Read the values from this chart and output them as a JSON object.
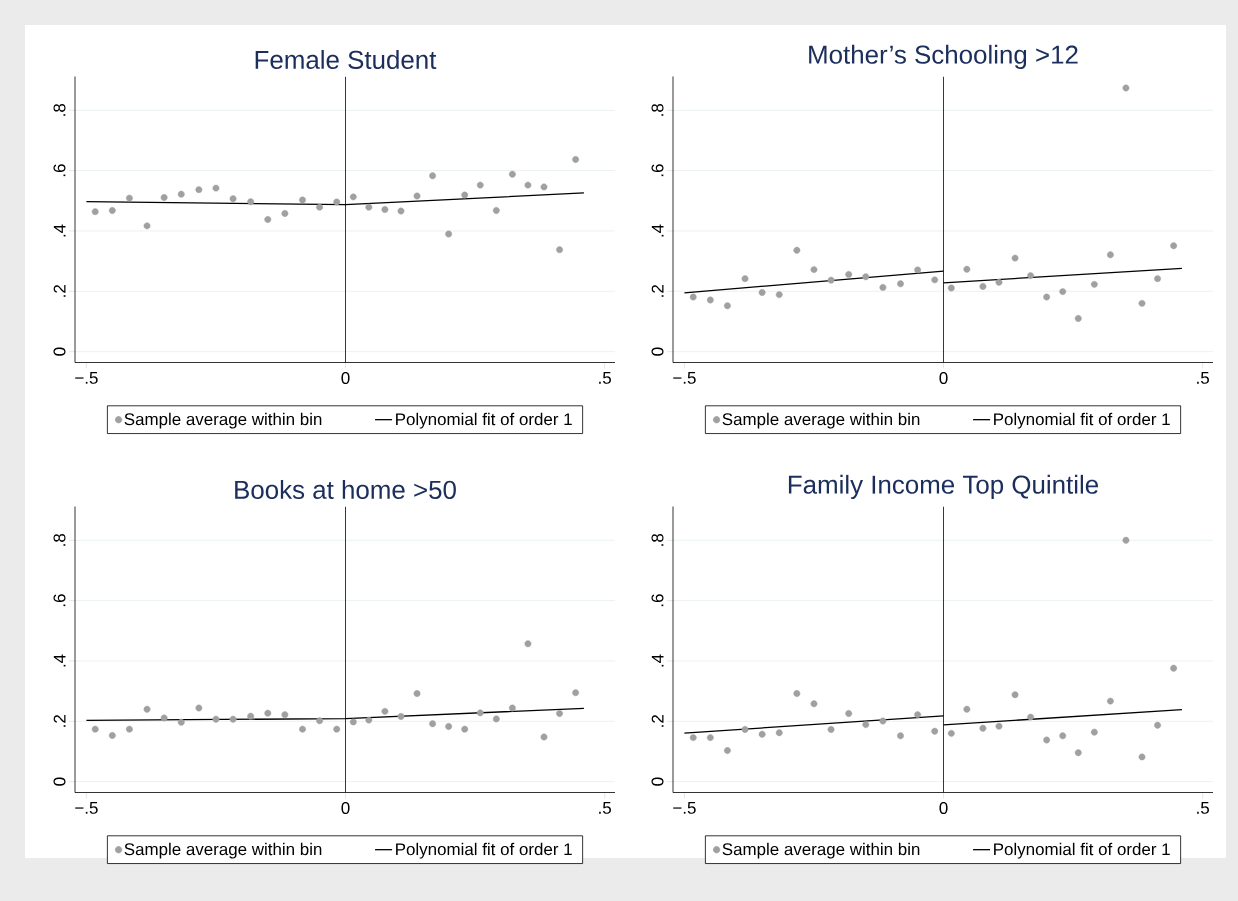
{
  "chart_data": [
    {
      "type": "scatter",
      "title": "Female Student",
      "x": [
        -0.483,
        -0.45,
        -0.417,
        -0.383,
        -0.35,
        -0.317,
        -0.283,
        -0.25,
        -0.217,
        -0.183,
        -0.15,
        -0.117,
        -0.083,
        -0.05,
        -0.017,
        0.015,
        0.045,
        0.076,
        0.107,
        0.138,
        0.168,
        0.199,
        0.23,
        0.26,
        0.291,
        0.322,
        0.352,
        0.383,
        0.413,
        0.444
      ],
      "series": [
        {
          "name": "Sample average within bin",
          "color": "#a0a0a0",
          "marker": "circle",
          "values": [
            0.464,
            0.468,
            0.509,
            0.417,
            0.511,
            0.522,
            0.537,
            0.542,
            0.507,
            0.497,
            0.438,
            0.458,
            0.503,
            0.479,
            0.496,
            0.513,
            0.479,
            0.471,
            0.466,
            0.516,
            0.583,
            0.39,
            0.519,
            0.552,
            0.468,
            0.588,
            0.552,
            0.546,
            0.338,
            0.637
          ]
        },
        {
          "name": "Polynomial fit of order 1",
          "type": "line",
          "color": "#000000",
          "x": [
            -0.5,
            0,
            0.46
          ],
          "values": [
            0.497,
            0.487,
            0.526
          ]
        }
      ],
      "xlim": [
        -0.522,
        0.52
      ],
      "ylim": [
        -0.036,
        0.912
      ],
      "xticks": [
        {
          "value": -0.5,
          "label": "−.5"
        },
        {
          "value": 0,
          "label": "0"
        },
        {
          "value": 0.5,
          "label": ".5"
        }
      ],
      "yticks": [
        {
          "value": 0,
          "label": "0"
        },
        {
          "value": 0.2,
          "label": ".2"
        },
        {
          "value": 0.4,
          "label": ".4"
        },
        {
          "value": 0.6,
          "label": ".6"
        },
        {
          "value": 0.8,
          "label": ".8"
        }
      ],
      "grid": "y",
      "legend": "bottom",
      "ref_lines": [
        {
          "axis": "x",
          "value": 0,
          "color": "#000000"
        }
      ]
    },
    {
      "type": "scatter",
      "title": "Mother’s Schooling >12",
      "x": [
        -0.483,
        -0.45,
        -0.417,
        -0.383,
        -0.35,
        -0.317,
        -0.283,
        -0.25,
        -0.217,
        -0.183,
        -0.15,
        -0.117,
        -0.083,
        -0.05,
        -0.017,
        0.015,
        0.045,
        0.076,
        0.107,
        0.138,
        0.168,
        0.199,
        0.23,
        0.26,
        0.291,
        0.322,
        0.352,
        0.383,
        0.413,
        0.444
      ],
      "series": [
        {
          "name": "Sample average within bin",
          "color": "#a0a0a0",
          "marker": "circle",
          "values": [
            0.181,
            0.171,
            0.152,
            0.242,
            0.196,
            0.189,
            0.336,
            0.272,
            0.237,
            0.256,
            0.248,
            0.213,
            0.225,
            0.271,
            0.238,
            0.211,
            0.273,
            0.216,
            0.23,
            0.31,
            0.252,
            0.181,
            0.199,
            0.11,
            0.223,
            0.321,
            0.874,
            0.16,
            0.242,
            0.351
          ]
        },
        {
          "name": "Polynomial fit of order 1",
          "type": "line",
          "color": "#000000",
          "x": [
            -0.5,
            0
          ],
          "values": [
            0.195,
            0.267
          ]
        },
        {
          "type": "line",
          "color": "#000000",
          "x": [
            0,
            0.46
          ],
          "values": [
            0.228,
            0.276
          ]
        }
      ],
      "xlim": [
        -0.522,
        0.52
      ],
      "ylim": [
        -0.036,
        0.912
      ],
      "xticks": [
        {
          "value": -0.5,
          "label": "−.5"
        },
        {
          "value": 0,
          "label": "0"
        },
        {
          "value": 0.5,
          "label": ".5"
        }
      ],
      "yticks": [
        {
          "value": 0,
          "label": "0"
        },
        {
          "value": 0.2,
          "label": ".2"
        },
        {
          "value": 0.4,
          "label": ".4"
        },
        {
          "value": 0.6,
          "label": ".6"
        },
        {
          "value": 0.8,
          "label": ".8"
        }
      ],
      "grid": "y",
      "legend": "bottom",
      "ref_lines": [
        {
          "axis": "x",
          "value": 0,
          "color": "#000000"
        }
      ]
    },
    {
      "type": "scatter",
      "title": "Books at home >50",
      "x": [
        -0.483,
        -0.45,
        -0.417,
        -0.383,
        -0.35,
        -0.317,
        -0.283,
        -0.25,
        -0.217,
        -0.183,
        -0.15,
        -0.117,
        -0.083,
        -0.05,
        -0.017,
        0.015,
        0.045,
        0.076,
        0.107,
        0.138,
        0.168,
        0.199,
        0.23,
        0.26,
        0.291,
        0.322,
        0.352,
        0.383,
        0.413,
        0.444
      ],
      "series": [
        {
          "name": "Sample average within bin",
          "color": "#a0a0a0",
          "marker": "circle",
          "values": [
            0.174,
            0.153,
            0.174,
            0.24,
            0.211,
            0.197,
            0.244,
            0.207,
            0.207,
            0.217,
            0.227,
            0.222,
            0.174,
            0.202,
            0.174,
            0.198,
            0.204,
            0.233,
            0.216,
            0.292,
            0.192,
            0.183,
            0.174,
            0.228,
            0.208,
            0.244,
            0.457,
            0.148,
            0.226,
            0.295
          ]
        },
        {
          "name": "Polynomial fit of order 1",
          "type": "line",
          "color": "#000000",
          "x": [
            -0.5,
            0,
            0.46
          ],
          "values": [
            0.203,
            0.209,
            0.243
          ]
        }
      ],
      "xlim": [
        -0.522,
        0.52
      ],
      "ylim": [
        -0.036,
        0.912
      ],
      "xticks": [
        {
          "value": -0.5,
          "label": "−.5"
        },
        {
          "value": 0,
          "label": "0"
        },
        {
          "value": 0.5,
          "label": ".5"
        }
      ],
      "yticks": [
        {
          "value": 0,
          "label": "0"
        },
        {
          "value": 0.2,
          "label": ".2"
        },
        {
          "value": 0.4,
          "label": ".4"
        },
        {
          "value": 0.6,
          "label": ".6"
        },
        {
          "value": 0.8,
          "label": ".8"
        }
      ],
      "grid": "y",
      "legend": "bottom",
      "ref_lines": [
        {
          "axis": "x",
          "value": 0,
          "color": "#000000"
        }
      ]
    },
    {
      "type": "scatter",
      "title": "Family Income Top Quintile",
      "x": [
        -0.483,
        -0.45,
        -0.417,
        -0.383,
        -0.35,
        -0.317,
        -0.283,
        -0.25,
        -0.217,
        -0.183,
        -0.15,
        -0.117,
        -0.083,
        -0.05,
        -0.017,
        0.015,
        0.045,
        0.076,
        0.107,
        0.138,
        0.168,
        0.199,
        0.23,
        0.26,
        0.291,
        0.322,
        0.352,
        0.383,
        0.413,
        0.444
      ],
      "series": [
        {
          "name": "Sample average within bin",
          "color": "#a0a0a0",
          "marker": "circle",
          "values": [
            0.146,
            0.146,
            0.103,
            0.173,
            0.157,
            0.162,
            0.292,
            0.258,
            0.173,
            0.226,
            0.189,
            0.201,
            0.152,
            0.222,
            0.167,
            0.16,
            0.24,
            0.177,
            0.184,
            0.288,
            0.214,
            0.138,
            0.152,
            0.096,
            0.164,
            0.267,
            0.8,
            0.082,
            0.187,
            0.376
          ]
        },
        {
          "name": "Polynomial fit of order 1",
          "type": "line",
          "color": "#000000",
          "x": [
            -0.5,
            0
          ],
          "values": [
            0.161,
            0.218
          ]
        },
        {
          "type": "line",
          "color": "#000000",
          "x": [
            0,
            0.46
          ],
          "values": [
            0.188,
            0.239
          ]
        }
      ],
      "xlim": [
        -0.522,
        0.52
      ],
      "ylim": [
        -0.036,
        0.912
      ],
      "xticks": [
        {
          "value": -0.5,
          "label": "−.5"
        },
        {
          "value": 0,
          "label": "0"
        },
        {
          "value": 0.5,
          "label": ".5"
        }
      ],
      "yticks": [
        {
          "value": 0,
          "label": "0"
        },
        {
          "value": 0.2,
          "label": ".2"
        },
        {
          "value": 0.4,
          "label": ".4"
        },
        {
          "value": 0.6,
          "label": ".6"
        },
        {
          "value": 0.8,
          "label": ".8"
        }
      ],
      "grid": "y",
      "legend": "bottom",
      "ref_lines": [
        {
          "axis": "x",
          "value": 0,
          "color": "#000000"
        }
      ]
    }
  ]
}
